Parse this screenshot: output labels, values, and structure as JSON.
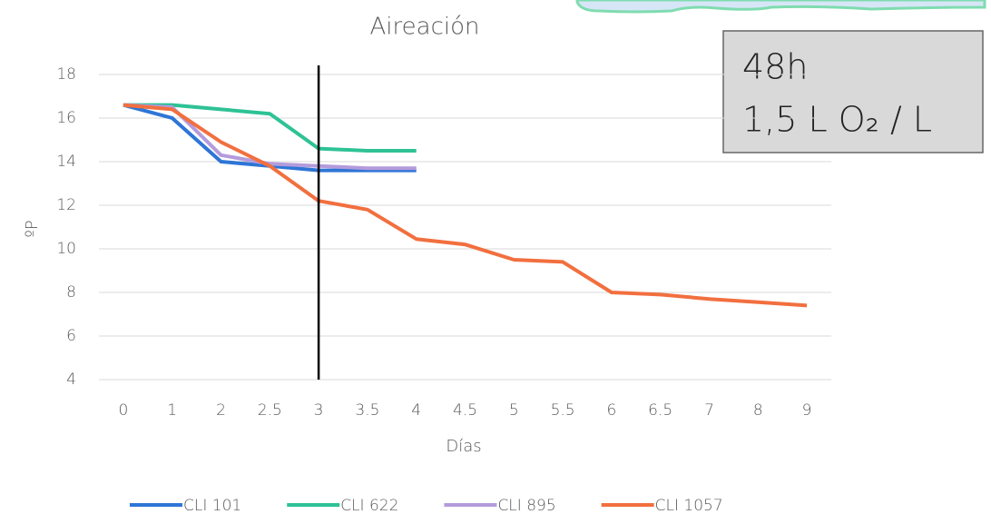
{
  "chart_data": {
    "type": "line",
    "title": "Aireación",
    "x_label": "Días",
    "y_label": "ºP",
    "categories": [
      "0",
      "1",
      "2",
      "2.5",
      "3",
      "3.5",
      "4",
      "4.5",
      "5",
      "5.5",
      "6",
      "6.5",
      "7",
      "8",
      "9"
    ],
    "series": [
      {
        "name": "CLI 101",
        "color": "#2e75d6",
        "values": [
          16.6,
          16.0,
          14.0,
          13.8,
          13.6,
          13.6,
          13.6,
          null,
          null,
          null,
          null,
          null,
          null,
          null,
          null
        ]
      },
      {
        "name": "CLI 622",
        "color": "#2ec295",
        "values": [
          16.6,
          16.6,
          16.4,
          16.2,
          14.6,
          14.5,
          14.5,
          null,
          null,
          null,
          null,
          null,
          null,
          null,
          null
        ]
      },
      {
        "name": "CLI 895",
        "color": "#b49bdc",
        "values": [
          16.6,
          16.5,
          14.3,
          13.9,
          13.8,
          13.7,
          13.7,
          null,
          null,
          null,
          null,
          null,
          null,
          null,
          null
        ]
      },
      {
        "name": "CLI 1057",
        "color": "#f26f3f",
        "values": [
          16.6,
          16.4,
          14.9,
          13.8,
          12.2,
          11.8,
          10.45,
          10.2,
          9.5,
          9.4,
          8.0,
          7.9,
          7.7,
          7.55,
          7.4
        ]
      }
    ],
    "ylim": [
      4,
      18
    ],
    "yticks": [
      4,
      6,
      8,
      10,
      12,
      14,
      16,
      18
    ],
    "grid": true,
    "vline": "3",
    "annotation": [
      "48h",
      "1,5 L O₂ / L"
    ],
    "legend": "bottom"
  }
}
